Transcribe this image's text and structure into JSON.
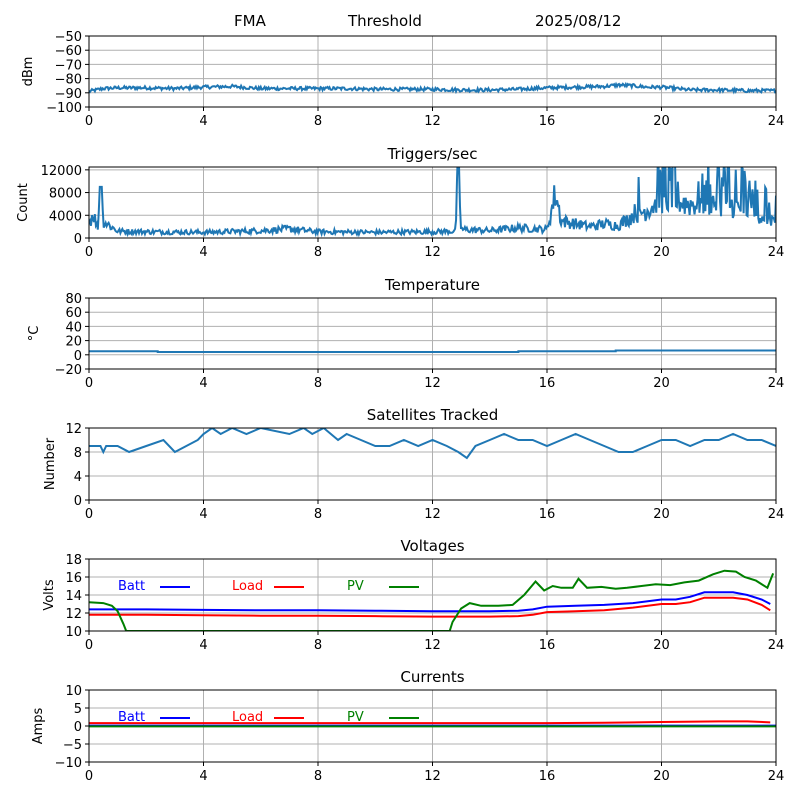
{
  "header": {
    "station": "FMA",
    "label": "Threshold",
    "date": "2025/08/12"
  },
  "chart_data": [
    {
      "type": "line",
      "title": "",
      "ylabel": "dBm",
      "xlabel": "",
      "xlim": [
        0,
        24
      ],
      "ylim": [
        -100,
        -50
      ],
      "xticks": [
        0,
        4,
        8,
        12,
        16,
        20,
        24
      ],
      "yticks": [
        -100,
        -90,
        -80,
        -70,
        -60,
        -50
      ],
      "grid": true,
      "series": [
        {
          "color": "#1f77b4",
          "style": "noisy",
          "x": [
            0,
            0.5,
            1,
            2,
            3,
            4,
            5,
            6,
            7,
            8,
            9,
            10,
            11,
            12,
            13,
            14,
            15,
            16,
            17,
            18,
            18.5,
            19,
            19.5,
            20,
            21,
            22,
            23,
            24
          ],
          "y": [
            -89,
            -87,
            -86.5,
            -86.5,
            -87,
            -86,
            -85.5,
            -87,
            -87,
            -87,
            -87,
            -87.5,
            -87.5,
            -87.5,
            -88,
            -88,
            -87.5,
            -86.5,
            -86,
            -85.5,
            -84.5,
            -85,
            -86,
            -86,
            -88,
            -88,
            -88.5,
            -88.5
          ],
          "noise": 1.2
        }
      ]
    },
    {
      "type": "line",
      "title": "Triggers/sec",
      "ylabel": "Count",
      "xlabel": "",
      "xlim": [
        0,
        24
      ],
      "ylim": [
        0,
        12500
      ],
      "xticks": [
        0,
        4,
        8,
        12,
        16,
        20,
        24
      ],
      "yticks": [
        0,
        4000,
        8000,
        12000
      ],
      "grid": true,
      "series": [
        {
          "color": "#1f77b4",
          "style": "spiky",
          "x": [
            0,
            0.15,
            0.3,
            0.4,
            0.5,
            1,
            2,
            4,
            6,
            7,
            8,
            10,
            12,
            12.8,
            12.9,
            13,
            14,
            15,
            16,
            16.3,
            16.5,
            17,
            17.5,
            18,
            18.5,
            19,
            19.5,
            20,
            21,
            22,
            23,
            24
          ],
          "y": [
            2500,
            4500,
            1500,
            9000,
            3000,
            1200,
            1100,
            1000,
            1300,
            1600,
            1100,
            1000,
            1100,
            1200,
            12500,
            1500,
            1300,
            1800,
            1500,
            8000,
            3000,
            2500,
            2000,
            2500,
            2200,
            4000,
            5000,
            7000,
            6000,
            6500,
            5000,
            3000
          ],
          "noise": 0.45
        }
      ]
    },
    {
      "type": "line",
      "title": "Temperature",
      "ylabel": "°C",
      "xlabel": "",
      "xlim": [
        0,
        24
      ],
      "ylim": [
        -20,
        80
      ],
      "xticks": [
        0,
        4,
        8,
        12,
        16,
        20,
        24
      ],
      "yticks": [
        -20,
        0,
        20,
        40,
        60,
        80
      ],
      "grid": true,
      "series": [
        {
          "color": "#1f77b4",
          "style": "step",
          "x": [
            0,
            2.4,
            2.4,
            15,
            15,
            18.4,
            18.4,
            24
          ],
          "y": [
            5,
            5,
            4,
            4,
            5,
            5,
            6,
            6
          ]
        }
      ]
    },
    {
      "type": "line",
      "title": "Satellites Tracked",
      "ylabel": "Number",
      "xlabel": "",
      "xlim": [
        0,
        24
      ],
      "ylim": [
        0,
        12
      ],
      "xticks": [
        0,
        4,
        8,
        12,
        16,
        20,
        24
      ],
      "yticks": [
        0,
        4,
        8,
        12
      ],
      "grid": true,
      "series": [
        {
          "color": "#1f77b4",
          "style": "step",
          "x": [
            0,
            0.4,
            0.5,
            0.6,
            1,
            1.4,
            2,
            2.6,
            3,
            3.4,
            3.8,
            4,
            4.3,
            4.6,
            5,
            5.5,
            6,
            7,
            7.5,
            7.8,
            8.2,
            8.7,
            9,
            9.5,
            10,
            10.5,
            11,
            11.5,
            12,
            12.5,
            12.9,
            13.2,
            13.5,
            14,
            14.5,
            15,
            15.5,
            16,
            16.5,
            17,
            17.5,
            18,
            18.5,
            19,
            19.5,
            20,
            20.5,
            21,
            21.5,
            22,
            22.5,
            23,
            23.5,
            24
          ],
          "y": [
            9,
            9,
            8,
            9,
            9,
            8,
            9,
            10,
            8,
            9,
            10,
            11,
            12,
            11,
            12,
            11,
            12,
            11,
            12,
            11,
            12,
            10,
            11,
            10,
            9,
            9,
            10,
            9,
            10,
            9,
            8,
            7,
            9,
            10,
            11,
            10,
            10,
            9,
            10,
            11,
            10,
            9,
            8,
            8,
            9,
            10,
            10,
            9,
            10,
            10,
            11,
            10,
            10,
            9
          ]
        }
      ]
    },
    {
      "type": "line",
      "title": "Voltages",
      "ylabel": "Volts",
      "xlabel": "",
      "xlim": [
        0,
        24
      ],
      "ylim": [
        10,
        18
      ],
      "xticks": [
        0,
        4,
        8,
        12,
        16,
        20,
        24
      ],
      "yticks": [
        10,
        12,
        14,
        16,
        18
      ],
      "grid": true,
      "legend": "top-left",
      "series": [
        {
          "name": "Batt",
          "color": "#0000ff",
          "x": [
            0,
            2,
            4,
            6,
            8,
            10,
            12,
            14,
            15,
            15.5,
            16,
            17,
            18,
            19,
            20,
            20.5,
            21,
            21.5,
            22,
            22.5,
            23,
            23.5,
            23.8
          ],
          "y": [
            12.4,
            12.4,
            12.35,
            12.3,
            12.3,
            12.25,
            12.2,
            12.2,
            12.25,
            12.4,
            12.7,
            12.8,
            12.9,
            13.1,
            13.5,
            13.5,
            13.8,
            14.3,
            14.3,
            14.3,
            14.0,
            13.5,
            13.0
          ]
        },
        {
          "name": "Load",
          "color": "#ff0000",
          "x": [
            0,
            2,
            4,
            6,
            8,
            10,
            12,
            14,
            15,
            15.5,
            16,
            17,
            18,
            19,
            20,
            20.5,
            21,
            21.5,
            22,
            22.5,
            23,
            23.5,
            23.8
          ],
          "y": [
            11.8,
            11.8,
            11.75,
            11.7,
            11.7,
            11.65,
            11.6,
            11.6,
            11.65,
            11.8,
            12.1,
            12.2,
            12.3,
            12.6,
            13.0,
            13.0,
            13.2,
            13.7,
            13.7,
            13.7,
            13.5,
            12.9,
            12.3
          ]
        },
        {
          "name": "PV",
          "color": "#008000",
          "x": [
            0,
            0.5,
            0.8,
            1.0,
            1.2,
            1.3,
            12.6,
            12.7,
            13.0,
            13.3,
            13.7,
            14.3,
            14.8,
            15.2,
            15.6,
            15.9,
            16.2,
            16.5,
            16.9,
            17.1,
            17.4,
            17.9,
            18.4,
            18.8,
            19.3,
            19.8,
            20.3,
            20.8,
            21.3,
            21.8,
            22.2,
            22.6,
            22.9,
            23.3,
            23.7,
            23.9
          ],
          "y": [
            13.2,
            13.1,
            12.8,
            12.2,
            10.8,
            10.0,
            10.0,
            11.0,
            12.5,
            13.1,
            12.8,
            12.8,
            12.9,
            14.0,
            15.5,
            14.5,
            15.0,
            14.8,
            14.8,
            15.8,
            14.8,
            14.9,
            14.7,
            14.8,
            15.0,
            15.2,
            15.1,
            15.4,
            15.6,
            16.3,
            16.7,
            16.6,
            16.0,
            15.6,
            14.8,
            16.4
          ]
        }
      ]
    },
    {
      "type": "line",
      "title": "Currents",
      "ylabel": "Amps",
      "xlabel": "",
      "xlim": [
        0,
        24
      ],
      "ylim": [
        -10,
        10
      ],
      "xticks": [
        0,
        4,
        8,
        12,
        16,
        20,
        24
      ],
      "yticks": [
        -10,
        -5,
        0,
        5,
        10
      ],
      "grid": true,
      "legend": "top-left",
      "series": [
        {
          "name": "Batt",
          "color": "#0000ff",
          "x": [
            0,
            24
          ],
          "y": [
            0.1,
            0.1
          ]
        },
        {
          "name": "Load",
          "color": "#ff0000",
          "x": [
            0,
            4,
            8,
            12,
            16,
            18,
            20,
            22,
            23,
            23.8
          ],
          "y": [
            0.8,
            0.8,
            0.8,
            0.8,
            0.8,
            0.9,
            1.1,
            1.3,
            1.3,
            1.0
          ]
        },
        {
          "name": "PV",
          "color": "#008000",
          "x": [
            0,
            24
          ],
          "y": [
            -0.1,
            -0.1
          ]
        }
      ]
    }
  ]
}
